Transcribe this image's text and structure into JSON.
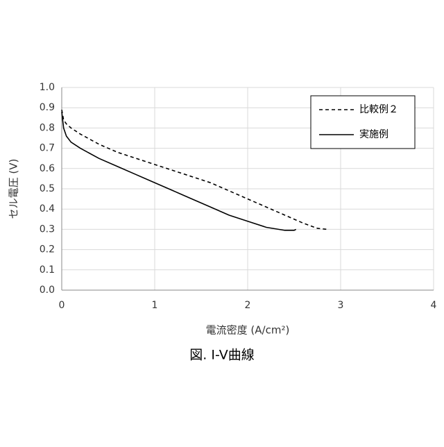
{
  "chart_data": {
    "type": "line",
    "title": "図. I-V曲線",
    "x_label": "電流密度 (A/cm²)",
    "y_label": "セル電圧 (V)",
    "xlim": [
      0,
      4
    ],
    "xticks": [
      0,
      1,
      2,
      3,
      4
    ],
    "ylim": [
      0,
      1
    ],
    "yticks": [
      {
        "value": 0,
        "label": "0.0"
      },
      0.1,
      0.2,
      0.3,
      0.4,
      0.5,
      0.6,
      0.7,
      0.8,
      0.9,
      {
        "value": 1,
        "label": "1.0"
      }
    ],
    "grid": true,
    "legend": "upper right",
    "series": [
      {
        "name": "比較例２",
        "color": "#000000",
        "dash": true,
        "x": [
          0,
          0.02,
          0.05,
          0.1,
          0.2,
          0.4,
          0.6,
          0.8,
          1.0,
          1.2,
          1.4,
          1.6,
          1.8,
          2.0,
          2.2,
          2.4,
          2.6,
          2.75,
          2.85
        ],
        "values": [
          0.89,
          0.84,
          0.82,
          0.8,
          0.77,
          0.72,
          0.68,
          0.65,
          0.62,
          0.59,
          0.56,
          0.53,
          0.49,
          0.45,
          0.41,
          0.37,
          0.33,
          0.305,
          0.3
        ]
      },
      {
        "name": "実施例",
        "color": "#000000",
        "dash": false,
        "x": [
          0,
          0.02,
          0.05,
          0.1,
          0.2,
          0.4,
          0.6,
          0.8,
          1.0,
          1.2,
          1.4,
          1.6,
          1.8,
          2.0,
          2.2,
          2.4,
          2.5,
          2.52
        ],
        "values": [
          0.88,
          0.8,
          0.76,
          0.73,
          0.7,
          0.65,
          0.61,
          0.57,
          0.53,
          0.49,
          0.45,
          0.41,
          0.37,
          0.34,
          0.31,
          0.295,
          0.295,
          0.3
        ]
      }
    ]
  }
}
